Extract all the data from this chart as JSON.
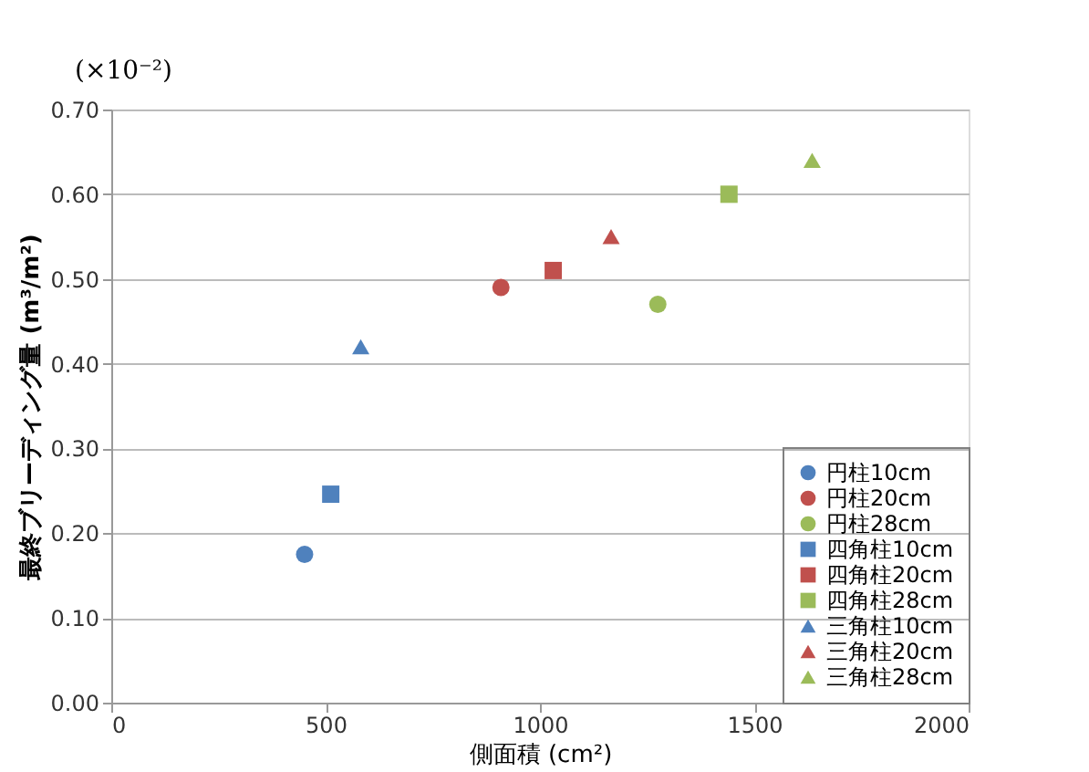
{
  "chart_data": {
    "type": "scatter",
    "xlabel": "側面積 (cm²)",
    "ylabel": "最終ブリーディング量 (m³/m²)",
    "annotations": [
      "(×10⁻²)"
    ],
    "xlim": [
      0,
      2000
    ],
    "xticks": [
      0,
      500,
      1000,
      1500,
      2000
    ],
    "ylim": [
      0,
      0.7
    ],
    "yticks": [
      {
        "value": 0,
        "label": "0.00"
      },
      {
        "value": 0.1,
        "label": "0.10"
      },
      {
        "value": 0.2,
        "label": "0.20"
      },
      {
        "value": 0.3,
        "label": "0.30"
      },
      {
        "value": 0.4,
        "label": "0.40"
      },
      {
        "value": 0.5,
        "label": "0.50"
      },
      {
        "value": 0.6,
        "label": "0.60"
      },
      {
        "value": 0.7,
        "label": "0.70"
      }
    ],
    "grid": "y",
    "legend": "bottom right",
    "series": [
      {
        "name": "円柱10cm",
        "color": "#4f81bd",
        "marker": "circle",
        "x": [
          451
        ],
        "values": [
          0.175
        ]
      },
      {
        "name": "円柱20cm",
        "color": "#c0504d",
        "marker": "circle",
        "x": [
          909
        ],
        "values": [
          0.49
        ]
      },
      {
        "name": "円柱28cm",
        "color": "#9bbb59",
        "marker": "circle",
        "x": [
          1275
        ],
        "values": [
          0.47
        ]
      },
      {
        "name": "四角柱10cm",
        "color": "#4f81bd",
        "marker": "square",
        "x": [
          512
        ],
        "values": [
          0.246
        ]
      },
      {
        "name": "四角柱20cm",
        "color": "#c0504d",
        "marker": "square",
        "x": [
          1031
        ],
        "values": [
          0.51
        ]
      },
      {
        "name": "四角柱28cm",
        "color": "#9bbb59",
        "marker": "square",
        "x": [
          1441
        ],
        "values": [
          0.6
        ]
      },
      {
        "name": "三角柱10cm",
        "color": "#4f81bd",
        "marker": "triangle",
        "x": [
          582
        ],
        "values": [
          0.42
        ]
      },
      {
        "name": "三角柱20cm",
        "color": "#c0504d",
        "marker": "triangle",
        "x": [
          1166
        ],
        "values": [
          0.55
        ]
      },
      {
        "name": "三角柱28cm",
        "color": "#9bbb59",
        "marker": "triangle",
        "x": [
          1635
        ],
        "values": [
          0.64
        ]
      }
    ]
  }
}
